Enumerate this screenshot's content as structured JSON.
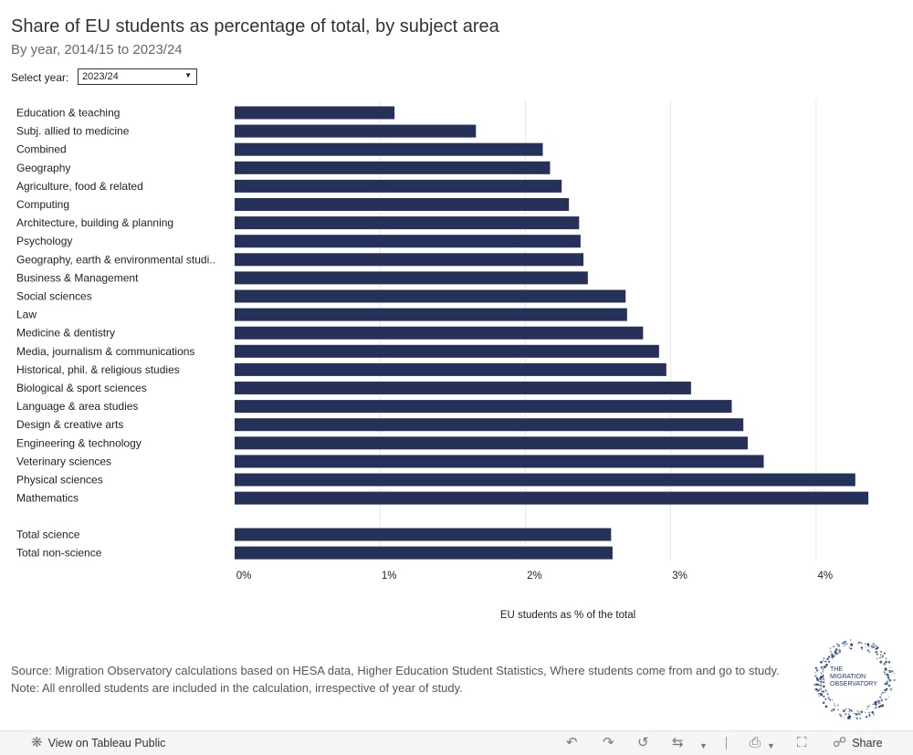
{
  "header": {
    "title": "Share of EU students as percentage of total, by subject area",
    "subtitle": "By year, 2014/15 to 2023/24"
  },
  "filter": {
    "label": "Select year:",
    "selected": "2023/24"
  },
  "chart_data": {
    "type": "bar",
    "orientation": "horizontal",
    "categories": [
      "Education & teaching",
      "Subj. allied to medicine",
      " Combined",
      "Geography",
      "Agriculture, food & related",
      "Computing",
      "Architecture, building & planning",
      "Psychology",
      "Geography, earth & environmental studi..",
      "Business & Management",
      "Social sciences",
      "Law",
      "Medicine & dentistry",
      "Media, journalism & communications",
      "Historical, phil. & religious studies",
      "Biological & sport sciences",
      "Language & area studies",
      "Design & creative arts",
      "Engineering & technology",
      "Veterinary sciences",
      "Physical sciences",
      "Mathematics"
    ],
    "values": [
      1.1,
      1.66,
      2.12,
      2.17,
      2.25,
      2.3,
      2.37,
      2.38,
      2.4,
      2.43,
      2.69,
      2.7,
      2.81,
      2.92,
      2.97,
      3.14,
      3.42,
      3.5,
      3.53,
      3.64,
      4.27,
      4.36
    ],
    "totals": {
      "categories": [
        "Total science",
        "Total non-science"
      ],
      "values": [
        2.59,
        2.6
      ]
    },
    "xlabel": "EU students as % of the total",
    "xlim": [
      0,
      4.5
    ],
    "xticks": [
      0,
      1,
      2,
      3,
      4
    ],
    "xtick_labels": [
      "0%",
      "1%",
      "2%",
      "3%",
      "4%"
    ],
    "bar_color": "#253158",
    "gridlines": "vertical"
  },
  "source_note": "Source: Migration Observatory calculations based on HESA data, Higher Education Student Statistics, Where students come from and go to study. Note: All enrolled students are included in the calculation, irrespective of year of study.",
  "logo": {
    "line1": "THE",
    "line2": "MIGRATION",
    "line3": "OBSERVATORY"
  },
  "toolbar": {
    "view_label": "View on Tableau Public",
    "share_label": "Share"
  },
  "colors": {
    "bar": "#253158",
    "grid": "#e8e8e8",
    "logo": "#1f3a6e"
  }
}
